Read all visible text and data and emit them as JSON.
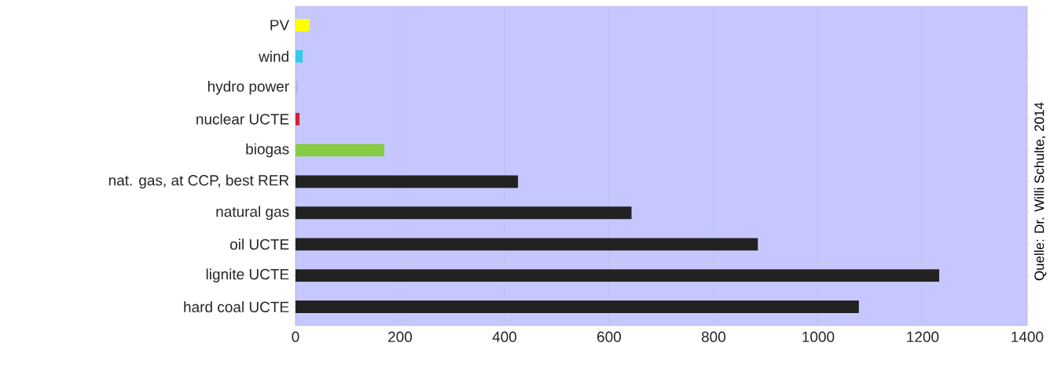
{
  "chart_data": {
    "type": "bar",
    "orientation": "horizontal",
    "categories": [
      "PV",
      "wind",
      "hydro power",
      "nuclear UCTE",
      "biogas",
      "nat. gas, at CCP, best RER",
      "natural gas",
      "oil UCTE",
      "lignite UCTE",
      "hard coal UCTE"
    ],
    "values": [
      27,
      14,
      4,
      8,
      170,
      426,
      643,
      885,
      1232,
      1078
    ],
    "colors": [
      "#ffff00",
      "#33ccee",
      "#aab8dd",
      "#cc2233",
      "#88cc44",
      "#222222",
      "#222222",
      "#222222",
      "#222222",
      "#222222"
    ],
    "xlim": [
      0,
      1400
    ],
    "xticks": [
      0,
      200,
      400,
      600,
      800,
      1000,
      1200,
      1400
    ],
    "grid": "x",
    "annotations": [
      "Quelle: Dr. Willi Schulte, 2014"
    ]
  }
}
